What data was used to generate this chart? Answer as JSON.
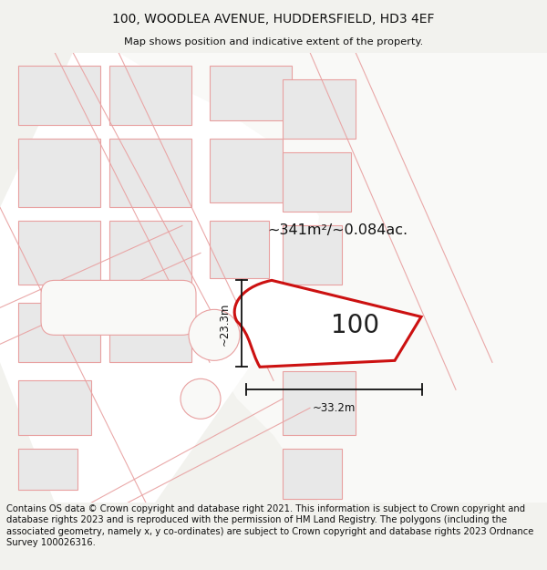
{
  "title_line1": "100, WOODLEA AVENUE, HUDDERSFIELD, HD3 4EF",
  "title_line2": "Map shows position and indicative extent of the property.",
  "footer_text": "Contains OS data © Crown copyright and database right 2021. This information is subject to Crown copyright and database rights 2023 and is reproduced with the permission of HM Land Registry. The polygons (including the associated geometry, namely x, y co-ordinates) are subject to Crown copyright and database rights 2023 Ordnance Survey 100026316.",
  "area_label": "~341m²/~0.084ac.",
  "property_number": "100",
  "dim_width": "~33.2m",
  "dim_height": "~23.3m",
  "bg_color": "#f2f2ee",
  "map_bg": "#f7f7f4",
  "green_color": "#cfdfd4",
  "cadastral_color": "#e8a0a0",
  "plot_fill": "#e8e8e8",
  "road_fill": "#ffffff",
  "property_fill": "#ffffff",
  "property_stroke": "#cc1111",
  "title_fontsize": 10,
  "footer_fontsize": 7.2
}
